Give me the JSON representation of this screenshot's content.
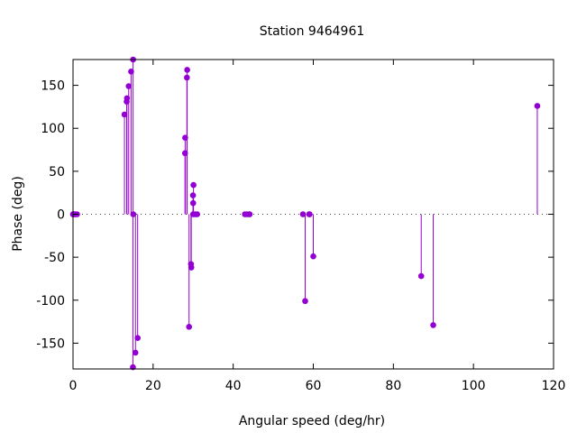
{
  "chart_data": {
    "type": "scatter",
    "style": "impulses-with-points",
    "title": "Station 9464961",
    "xlabel": "Angular speed (deg/hr)",
    "ylabel": "Phase (deg)",
    "xlim": [
      0,
      120
    ],
    "ylim": [
      -180,
      180
    ],
    "xticks": [
      0,
      20,
      40,
      60,
      80,
      100,
      120
    ],
    "yticks": [
      -150,
      -100,
      -50,
      0,
      50,
      100,
      150
    ],
    "zero_line": true,
    "grid": false,
    "legend": "none",
    "color": "#9400d3",
    "points": [
      {
        "x": 0.0,
        "y": 0
      },
      {
        "x": 0.04,
        "y": 0
      },
      {
        "x": 0.08,
        "y": 0
      },
      {
        "x": 0.5,
        "y": 0
      },
      {
        "x": 0.55,
        "y": 0
      },
      {
        "x": 1.0,
        "y": 0
      },
      {
        "x": 12.85,
        "y": 116
      },
      {
        "x": 13.4,
        "y": 131
      },
      {
        "x": 13.47,
        "y": 135
      },
      {
        "x": 13.9,
        "y": 149
      },
      {
        "x": 14.5,
        "y": 166
      },
      {
        "x": 14.96,
        "y": -178
      },
      {
        "x": 15.0,
        "y": 180
      },
      {
        "x": 15.04,
        "y": 0
      },
      {
        "x": 15.59,
        "y": -161
      },
      {
        "x": 16.14,
        "y": -144
      },
      {
        "x": 27.97,
        "y": 71
      },
      {
        "x": 28.0,
        "y": 89
      },
      {
        "x": 28.44,
        "y": 159
      },
      {
        "x": 28.51,
        "y": 168
      },
      {
        "x": 28.98,
        "y": -131
      },
      {
        "x": 29.46,
        "y": -58
      },
      {
        "x": 29.53,
        "y": -62
      },
      {
        "x": 29.96,
        "y": 22
      },
      {
        "x": 30.0,
        "y": 13
      },
      {
        "x": 30.08,
        "y": 34
      },
      {
        "x": 30.0,
        "y": 0
      },
      {
        "x": 30.5,
        "y": 0
      },
      {
        "x": 31.0,
        "y": 0
      },
      {
        "x": 42.93,
        "y": 0
      },
      {
        "x": 43.48,
        "y": 0
      },
      {
        "x": 44.03,
        "y": 0
      },
      {
        "x": 44.1,
        "y": 0
      },
      {
        "x": 57.42,
        "y": 0
      },
      {
        "x": 57.97,
        "y": -101
      },
      {
        "x": 58.98,
        "y": 0
      },
      {
        "x": 59.07,
        "y": 0
      },
      {
        "x": 60.0,
        "y": -49
      },
      {
        "x": 86.95,
        "y": -72
      },
      {
        "x": 89.95,
        "y": -129
      },
      {
        "x": 115.94,
        "y": 126
      }
    ]
  }
}
